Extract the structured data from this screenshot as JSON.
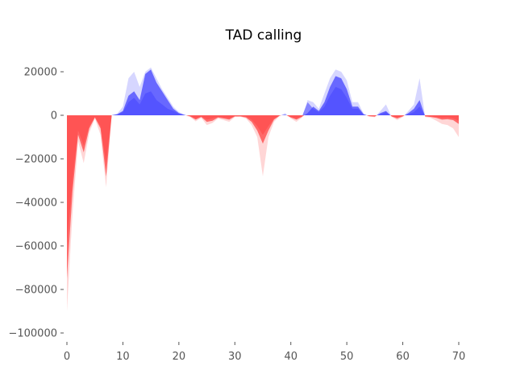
{
  "chart_data": {
    "type": "area",
    "title": "TAD calling",
    "xlabel": "",
    "ylabel": "",
    "xlim": [
      0,
      70
    ],
    "ylim": [
      -105000,
      30000
    ],
    "xticks": [
      0,
      10,
      20,
      30,
      40,
      50,
      60,
      70
    ],
    "xtick_labels": [
      "0",
      "10",
      "20",
      "30",
      "40",
      "50",
      "60",
      "70"
    ],
    "yticks": [
      20000,
      0,
      -20000,
      -40000,
      -60000,
      -80000,
      -100000
    ],
    "ytick_labels": [
      "20000",
      "0",
      "−20000",
      "−40000",
      "−60000",
      "−80000",
      "−100000"
    ],
    "grid": false,
    "legend": "none",
    "colors": {
      "positive": "#4444ff",
      "negative": "#ff4444"
    },
    "x": [
      0,
      1,
      2,
      3,
      4,
      5,
      6,
      7,
      8,
      9,
      10,
      11,
      12,
      13,
      14,
      15,
      16,
      17,
      18,
      19,
      20,
      21,
      22,
      23,
      24,
      25,
      26,
      27,
      28,
      29,
      30,
      31,
      32,
      33,
      34,
      35,
      36,
      37,
      38,
      39,
      40,
      41,
      42,
      43,
      44,
      45,
      46,
      47,
      48,
      49,
      50,
      51,
      52,
      53,
      54,
      55,
      56,
      57,
      58,
      59,
      60,
      61,
      62,
      63,
      64,
      65,
      66,
      67,
      68,
      69,
      70
    ],
    "series": [
      {
        "values": [
          -75000,
          -35000,
          -9000,
          -17000,
          -6000,
          -1000,
          -6000,
          -28000,
          0,
          500,
          2000,
          9000,
          11000,
          7000,
          19000,
          21000,
          15000,
          11000,
          7000,
          3000,
          1000,
          200,
          -500,
          -2000,
          -800,
          -3000,
          -2500,
          -1000,
          -1500,
          -2000,
          -500,
          -500,
          -1000,
          -3000,
          -7000,
          -13000,
          -7000,
          -2000,
          -200,
          300,
          -1000,
          -2000,
          -700,
          1000,
          4000,
          2000,
          6000,
          13000,
          18000,
          17000,
          12000,
          4000,
          4000,
          500,
          -400,
          -600,
          1000,
          2000,
          -500,
          -1500,
          -500,
          1000,
          3000,
          7000,
          -500,
          -800,
          -1200,
          -2000,
          -1800,
          -2200,
          -4000
        ]
      },
      {
        "values": [
          -60000,
          -30000,
          -7000,
          -14000,
          -5000,
          -800,
          -5000,
          -22000,
          0,
          300,
          1500,
          6000,
          8000,
          5000,
          10000,
          11000,
          7000,
          5000,
          3000,
          2000,
          700,
          100,
          -300,
          -1500,
          -500,
          -2000,
          -1500,
          -700,
          -1000,
          -1500,
          -300,
          -300,
          -600,
          -2000,
          -5000,
          -9000,
          -5000,
          -1500,
          -100,
          200,
          -700,
          -1500,
          -500,
          6000,
          3000,
          1500,
          4000,
          9000,
          13000,
          12000,
          8000,
          3000,
          3000,
          300,
          -300,
          -400,
          500,
          1500,
          -400,
          -1000,
          -300,
          500,
          1500,
          4000,
          -300,
          -500,
          -800,
          -1200,
          -1000,
          -1500,
          -2500
        ]
      },
      {
        "values": [
          -90000,
          -45000,
          -12000,
          -22000,
          -8000,
          -1500,
          -9000,
          -33000,
          0,
          800,
          4000,
          17000,
          20000,
          13000,
          20000,
          22000,
          17000,
          12000,
          8000,
          4000,
          1500,
          300,
          -800,
          -2800,
          -1200,
          -4500,
          -3500,
          -1500,
          -2200,
          -3000,
          -800,
          -700,
          -1500,
          -4500,
          -10000,
          -28000,
          -10000,
          -3000,
          -300,
          1000,
          -1500,
          -3000,
          -1000,
          7000,
          6000,
          3000,
          10000,
          17000,
          21000,
          20000,
          16000,
          6000,
          6000,
          800,
          -600,
          -900,
          2000,
          5000,
          -700,
          -2200,
          -800,
          2000,
          5000,
          17000,
          -800,
          -1200,
          -2500,
          -4000,
          -4500,
          -6000,
          -10000
        ]
      }
    ]
  }
}
